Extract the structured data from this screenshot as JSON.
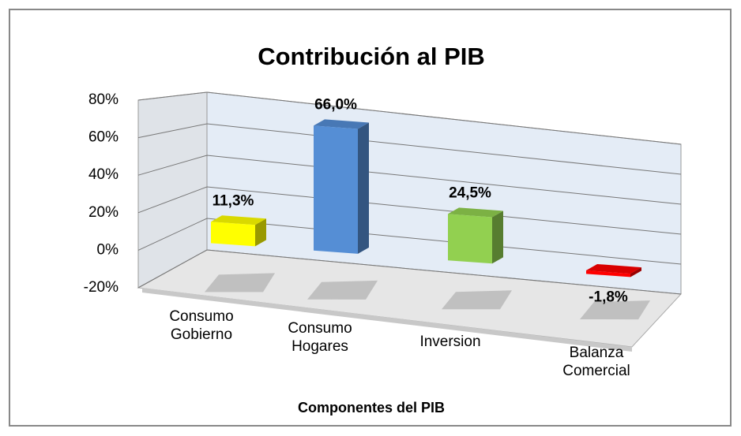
{
  "chart_data": {
    "type": "bar3d",
    "title": "Contribución al PIB",
    "x_label": "Componentes del PIB",
    "categories": [
      "Consumo Gobierno",
      "Consumo Hogares",
      "Inversion",
      "Balanza Comercial"
    ],
    "values": [
      11.3,
      66.0,
      24.5,
      -1.8
    ],
    "value_labels": [
      "11,3%",
      "66,0%",
      "24,5%",
      "-1,8%"
    ],
    "colors": [
      "#ffff00",
      "#558ed5",
      "#92d050",
      "#ff0000"
    ],
    "ylim": [
      -20,
      80
    ],
    "yticks": [
      {
        "value": -20,
        "label": "-20%"
      },
      {
        "value": 0,
        "label": "0%"
      },
      {
        "value": 20,
        "label": "20%"
      },
      {
        "value": 40,
        "label": "40%"
      },
      {
        "value": 60,
        "label": "60%"
      },
      {
        "value": 80,
        "label": "80%"
      }
    ],
    "grid": true
  }
}
